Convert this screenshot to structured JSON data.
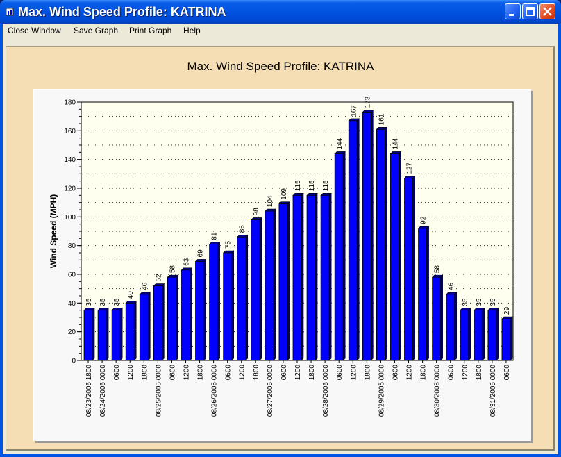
{
  "window": {
    "title": "Max. Wind Speed Profile: KATRINA"
  },
  "menu": {
    "items": [
      "Close Window",
      "Save Graph",
      "Print Graph",
      "Help"
    ]
  },
  "chart_data": {
    "type": "bar",
    "title": "Max. Wind Speed Profile: KATRINA",
    "ylabel": "Wind Speed (MPH)",
    "xlabel": "",
    "ylim": [
      0,
      180
    ],
    "yticks": [
      0,
      20,
      40,
      60,
      80,
      100,
      120,
      140,
      160,
      180
    ],
    "grid": true,
    "bar_color": "#0000ff",
    "plot_background": "#fffff0",
    "categories": [
      "08/23/2005 1800",
      "08/24/2005 0000",
      "0600",
      "1200",
      "1800",
      "08/25/2005 0000",
      "0600",
      "1200",
      "1800",
      "08/26/2005 0000",
      "0600",
      "1200",
      "1800",
      "08/27/2005 0000",
      "0600",
      "1200",
      "1800",
      "08/28/2005 0000",
      "0600",
      "1200",
      "1800",
      "08/29/2005 0000",
      "0600",
      "1200",
      "1800",
      "08/30/2005 0000",
      "0600",
      "1200",
      "1800",
      "08/31/2005 0000",
      "0600"
    ],
    "values": [
      35,
      35,
      35,
      40,
      46,
      52,
      58,
      63,
      69,
      81,
      75,
      86,
      98,
      104,
      109,
      115,
      115,
      115,
      144,
      167,
      173,
      161,
      144,
      127,
      92,
      58,
      46,
      35,
      35,
      35,
      29
    ]
  }
}
